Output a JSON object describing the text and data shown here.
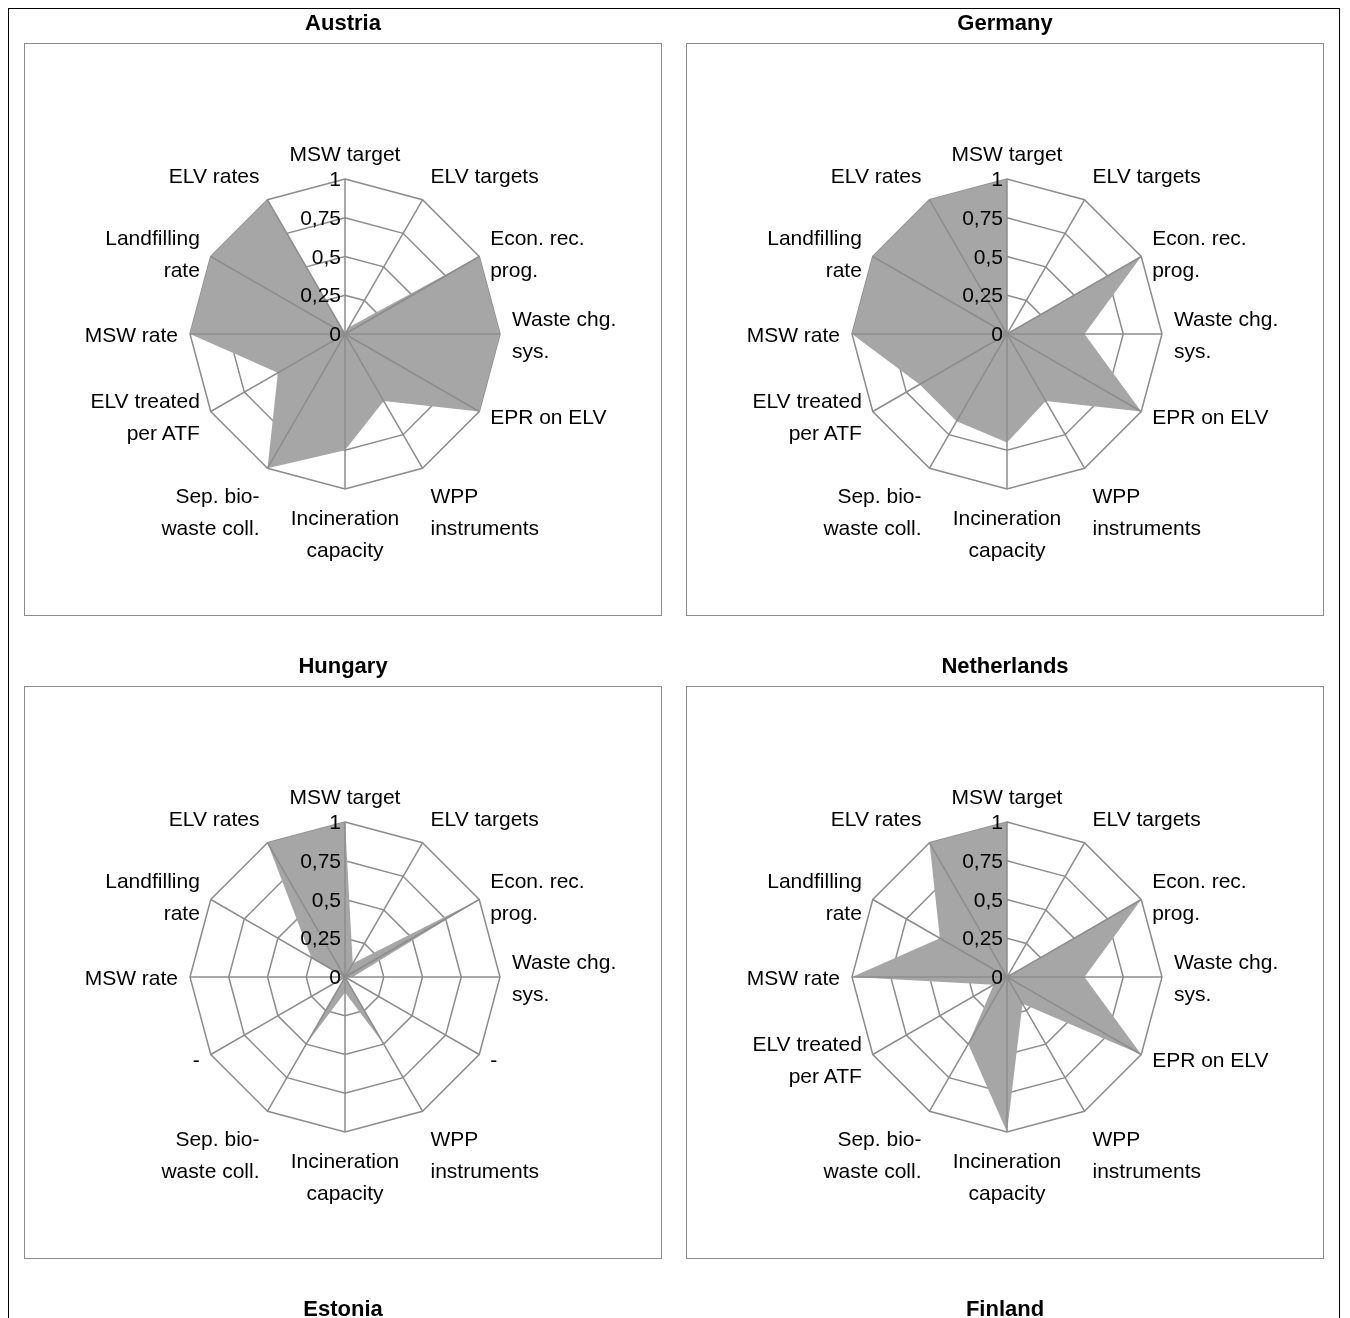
{
  "chart_data": [
    {
      "type": "radar",
      "title": "Austria",
      "categories": [
        "MSW target",
        "ELV targets",
        "Econ. rec. prog.",
        "Waste chg. sys.",
        "EPR on ELV",
        "WPP instruments",
        "Incineration capacity",
        "Sep. bio-waste coll.",
        "ELV treated per ATF",
        "MSW rate",
        "Landfilling rate",
        "ELV rates"
      ],
      "values": [
        0,
        0.05,
        1,
        1,
        1,
        0.5,
        0.75,
        1,
        0.5,
        1,
        1,
        1
      ],
      "color": "#a6a6a6",
      "ylim": [
        0,
        1
      ],
      "yticks": [
        {
          "value": 0,
          "label": "0"
        },
        {
          "value": 0.25,
          "label": "0,25"
        },
        {
          "value": 0.5,
          "label": "0,5"
        },
        {
          "value": 0.75,
          "label": "0,75"
        },
        {
          "value": 1,
          "label": "1"
        }
      ],
      "grid": true
    },
    {
      "type": "radar",
      "title": "Germany",
      "categories": [
        "MSW target",
        "ELV targets",
        "Econ. rec. prog.",
        "Waste chg. sys.",
        "EPR on ELV",
        "WPP instruments",
        "Incineration capacity",
        "Sep. bio-waste coll.",
        "ELV treated per ATF",
        "MSW rate",
        "Landfilling rate",
        "ELV rates"
      ],
      "values": [
        1,
        0,
        1,
        0.5,
        1,
        0.5,
        0.7,
        0.65,
        0.65,
        1,
        1,
        1
      ],
      "color": "#a6a6a6",
      "ylim": [
        0,
        1
      ],
      "yticks": [
        {
          "value": 0,
          "label": "0"
        },
        {
          "value": 0.25,
          "label": "0,25"
        },
        {
          "value": 0.5,
          "label": "0,5"
        },
        {
          "value": 0.75,
          "label": "0,75"
        },
        {
          "value": 1,
          "label": "1"
        }
      ],
      "grid": true
    },
    {
      "type": "radar",
      "title": "Hungary",
      "categories": [
        "MSW target",
        "ELV targets",
        "Econ. rec. prog.",
        "Waste chg. sys.",
        "-",
        "WPP instruments",
        "Incineration capacity",
        "Sep. bio-waste coll.",
        "-",
        "MSW rate",
        "Landfilling rate",
        "ELV rates"
      ],
      "values": [
        1,
        0.1,
        1,
        0.05,
        0,
        0.5,
        0.1,
        0.5,
        0,
        0,
        0.25,
        1
      ],
      "color": "#a6a6a6",
      "ylim": [
        0,
        1
      ],
      "yticks": [
        {
          "value": 0,
          "label": "0"
        },
        {
          "value": 0.25,
          "label": "0,25"
        },
        {
          "value": 0.5,
          "label": "0,5"
        },
        {
          "value": 0.75,
          "label": "0,75"
        },
        {
          "value": 1,
          "label": "1"
        }
      ],
      "grid": true
    },
    {
      "type": "radar",
      "title": "Netherlands",
      "categories": [
        "MSW target",
        "ELV targets",
        "Econ. rec. prog.",
        "Waste chg. sys.",
        "EPR on ELV",
        "WPP instruments",
        "Incineration capacity",
        "Sep. bio-waste coll.",
        "ELV treated per ATF",
        "MSW rate",
        "Landfilling rate",
        "ELV rates"
      ],
      "values": [
        1,
        0,
        1,
        0.5,
        1,
        0.2,
        1,
        0.5,
        0.1,
        1,
        0.5,
        1
      ],
      "color": "#a6a6a6",
      "ylim": [
        0,
        1
      ],
      "yticks": [
        {
          "value": 0,
          "label": "0"
        },
        {
          "value": 0.25,
          "label": "0,25"
        },
        {
          "value": 0.5,
          "label": "0,5"
        },
        {
          "value": 0.75,
          "label": "0,75"
        },
        {
          "value": 1,
          "label": "1"
        }
      ],
      "grid": true
    },
    {
      "type": "other",
      "title": "Estonia"
    },
    {
      "type": "other",
      "title": "Finland"
    }
  ]
}
